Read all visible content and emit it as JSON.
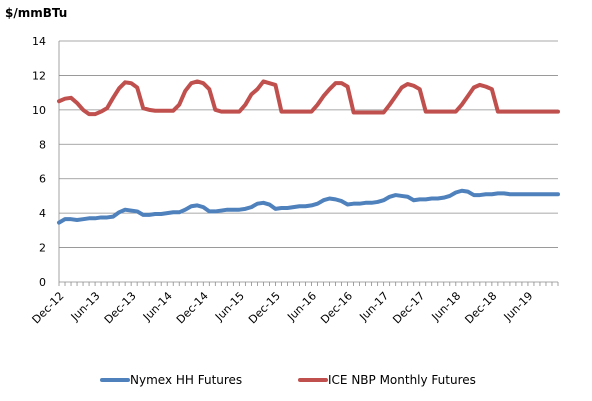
{
  "chart_data": {
    "type": "line",
    "title": "",
    "ylabel": "$/mmBTu",
    "xlabel": "",
    "ylim": [
      0,
      14
    ],
    "ytick_step": 2,
    "y_ticks": [
      "0",
      "2",
      "4",
      "6",
      "8",
      "10",
      "12",
      "14"
    ],
    "grid": "horizontal",
    "legend_position": "bottom",
    "categories": [
      "Dec-12",
      "Jan-13",
      "Feb-13",
      "Mar-13",
      "Apr-13",
      "May-13",
      "Jun-13",
      "Jul-13",
      "Aug-13",
      "Sep-13",
      "Oct-13",
      "Nov-13",
      "Dec-13",
      "Jan-14",
      "Feb-14",
      "Mar-14",
      "Apr-14",
      "May-14",
      "Jun-14",
      "Jul-14",
      "Aug-14",
      "Sep-14",
      "Oct-14",
      "Nov-14",
      "Dec-14",
      "Jan-15",
      "Feb-15",
      "Mar-15",
      "Apr-15",
      "May-15",
      "Jun-15",
      "Jul-15",
      "Aug-15",
      "Sep-15",
      "Oct-15",
      "Nov-15",
      "Dec-15",
      "Jan-16",
      "Feb-16",
      "Mar-16",
      "Apr-16",
      "May-16",
      "Jun-16",
      "Jul-16",
      "Aug-16",
      "Sep-16",
      "Oct-16",
      "Nov-16",
      "Dec-16",
      "Jan-17",
      "Feb-17",
      "Mar-17",
      "Apr-17",
      "May-17",
      "Jun-17",
      "Jul-17",
      "Aug-17",
      "Sep-17",
      "Oct-17",
      "Nov-17",
      "Dec-17",
      "Jan-18",
      "Feb-18",
      "Mar-18",
      "Apr-18",
      "May-18",
      "Jun-18",
      "Jul-18",
      "Aug-18",
      "Sep-18",
      "Oct-18",
      "Nov-18",
      "Dec-18",
      "Jan-19",
      "Feb-19",
      "Mar-19",
      "Apr-19",
      "May-19",
      "Jun-19",
      "Jul-19",
      "Aug-19",
      "Sep-19",
      "Oct-19",
      "Nov-19"
    ],
    "x_tick_labels": [
      {
        "index": 0,
        "label": "Dec-12"
      },
      {
        "index": 6,
        "label": "Jun-13"
      },
      {
        "index": 12,
        "label": "Dec-13"
      },
      {
        "index": 18,
        "label": "Jun-14"
      },
      {
        "index": 24,
        "label": "Dec-14"
      },
      {
        "index": 30,
        "label": "Jun-15"
      },
      {
        "index": 36,
        "label": "Dec-15"
      },
      {
        "index": 42,
        "label": "Jun-16"
      },
      {
        "index": 48,
        "label": "Dec-16"
      },
      {
        "index": 54,
        "label": "Jun-17"
      },
      {
        "index": 60,
        "label": "Dec-17"
      },
      {
        "index": 66,
        "label": "Jun-18"
      },
      {
        "index": 72,
        "label": "Dec-18"
      },
      {
        "index": 78,
        "label": "Jun-19"
      }
    ],
    "series": [
      {
        "name": "Nymex HH Futures",
        "color": "#4F81BD",
        "values": [
          3.45,
          3.65,
          3.65,
          3.6,
          3.65,
          3.7,
          3.7,
          3.75,
          3.75,
          3.8,
          4.05,
          4.2,
          4.15,
          4.1,
          3.9,
          3.9,
          3.95,
          3.95,
          4.0,
          4.05,
          4.05,
          4.2,
          4.4,
          4.45,
          4.35,
          4.1,
          4.1,
          4.15,
          4.2,
          4.2,
          4.2,
          4.25,
          4.35,
          4.55,
          4.6,
          4.5,
          4.25,
          4.3,
          4.3,
          4.35,
          4.4,
          4.4,
          4.45,
          4.55,
          4.75,
          4.85,
          4.8,
          4.7,
          4.5,
          4.55,
          4.55,
          4.6,
          4.6,
          4.65,
          4.75,
          4.95,
          5.05,
          5.0,
          4.95,
          4.75,
          4.8,
          4.8,
          4.85,
          4.85,
          4.9,
          5.0,
          5.2,
          5.3,
          5.25,
          5.05,
          5.05,
          5.1,
          5.1,
          5.15,
          5.15,
          5.1,
          5.1,
          5.1,
          5.1,
          5.1,
          5.1,
          5.1,
          5.1,
          5.1
        ]
      },
      {
        "name": "ICE NBP Monthly Futures",
        "color": "#C0504D",
        "values": [
          10.5,
          10.65,
          10.7,
          10.4,
          10.0,
          9.75,
          9.75,
          9.9,
          10.1,
          10.7,
          11.25,
          11.6,
          11.55,
          11.3,
          10.1,
          10.0,
          9.95,
          9.95,
          9.95,
          9.95,
          10.3,
          11.1,
          11.55,
          11.65,
          11.55,
          11.2,
          10.0,
          9.9,
          9.9,
          9.9,
          9.9,
          10.3,
          10.9,
          11.2,
          11.65,
          11.55,
          11.45,
          9.9,
          9.9,
          9.9,
          9.9,
          9.9,
          9.9,
          10.3,
          10.8,
          11.2,
          11.55,
          11.55,
          11.35,
          9.85,
          9.85,
          9.85,
          9.85,
          9.85,
          9.85,
          10.3,
          10.8,
          11.3,
          11.5,
          11.4,
          11.2,
          9.9,
          9.9,
          9.9,
          9.9,
          9.9,
          9.9,
          10.3,
          10.8,
          11.3,
          11.45,
          11.35,
          11.2,
          9.9,
          9.9,
          9.9,
          9.9,
          9.9,
          9.9,
          9.9,
          9.9,
          9.9,
          9.9,
          9.9
        ]
      }
    ]
  }
}
